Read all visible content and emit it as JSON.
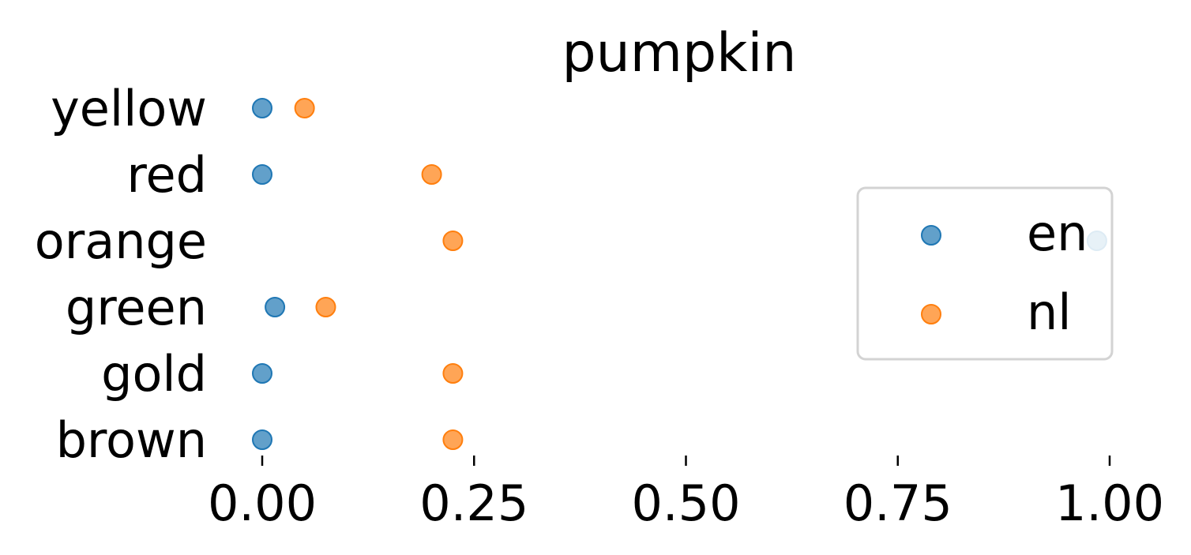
{
  "chart_data": {
    "type": "scatter",
    "title": "pumpkin",
    "xlabel": "",
    "ylabel": "",
    "categories": [
      "brown",
      "gold",
      "green",
      "orange",
      "red",
      "yellow"
    ],
    "x_ticks": [
      "0.00",
      "0.25",
      "0.50",
      "0.75",
      "1.00"
    ],
    "xlim": [
      -0.05,
      1.0
    ],
    "series": [
      {
        "name": "en",
        "color": "#1f77b4",
        "values": [
          0.0,
          0.0,
          0.015,
          0.985,
          0.0,
          0.0
        ]
      },
      {
        "name": "nl",
        "color": "#ff7f0e",
        "values": [
          0.225,
          0.225,
          0.075,
          0.225,
          0.2,
          0.05
        ]
      }
    ],
    "legend": {
      "placement": "center-right"
    },
    "grid": false
  }
}
